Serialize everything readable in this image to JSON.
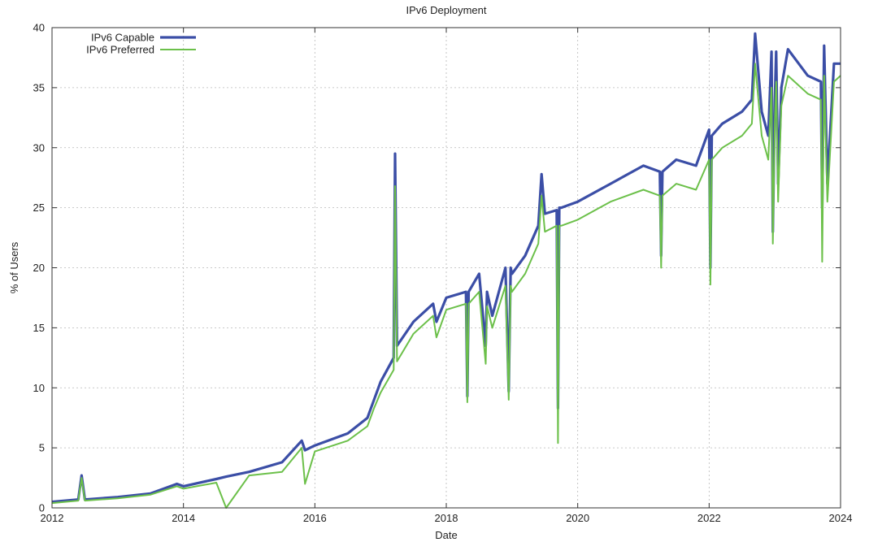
{
  "chart_data": {
    "type": "line",
    "title": "IPv6 Deployment",
    "xlabel": "Date",
    "ylabel": "% of Users",
    "xlim": [
      2012,
      2024
    ],
    "ylim": [
      0,
      40
    ],
    "x_ticks": [
      "2012",
      "2014",
      "2016",
      "2018",
      "2020",
      "2022",
      "2024"
    ],
    "y_ticks": [
      "0",
      "5",
      "10",
      "15",
      "20",
      "25",
      "30",
      "35",
      "40"
    ],
    "grid": true,
    "legend_position": "top-left",
    "series": [
      {
        "name": "IPv6 Capable",
        "color": "#3b4ea6",
        "x": [
          2012.0,
          2012.4,
          2012.45,
          2012.5,
          2013.0,
          2013.5,
          2013.9,
          2014.0,
          2014.5,
          2014.65,
          2015.0,
          2015.5,
          2015.8,
          2015.85,
          2016.0,
          2016.5,
          2016.8,
          2016.9,
          2017.0,
          2017.2,
          2017.22,
          2017.25,
          2017.5,
          2017.8,
          2017.85,
          2018.0,
          2018.3,
          2018.32,
          2018.34,
          2018.5,
          2018.6,
          2018.62,
          2018.7,
          2018.9,
          2018.95,
          2018.98,
          2019.0,
          2019.2,
          2019.4,
          2019.45,
          2019.5,
          2019.68,
          2019.7,
          2019.72,
          2019.75,
          2020.0,
          2020.5,
          2021.0,
          2021.25,
          2021.27,
          2021.29,
          2021.5,
          2021.8,
          2022.0,
          2022.02,
          2022.04,
          2022.2,
          2022.5,
          2022.65,
          2022.7,
          2022.8,
          2022.9,
          2022.95,
          2022.97,
          2023.0,
          2023.02,
          2023.05,
          2023.1,
          2023.2,
          2023.5,
          2023.7,
          2023.72,
          2023.75,
          2023.8,
          2023.9,
          2024.0
        ],
        "values": [
          0.5,
          0.7,
          2.7,
          0.7,
          0.9,
          1.2,
          2.0,
          1.8,
          2.4,
          2.6,
          3.0,
          3.8,
          5.6,
          4.8,
          5.2,
          6.2,
          7.5,
          9.0,
          10.5,
          12.5,
          29.5,
          13.5,
          15.5,
          17.0,
          15.5,
          17.5,
          18.0,
          9.3,
          18.0,
          19.5,
          13.5,
          18.0,
          16.0,
          20.0,
          9.7,
          20.0,
          19.5,
          21.0,
          23.5,
          27.8,
          24.5,
          24.8,
          8.3,
          25.0,
          25.0,
          25.5,
          27.0,
          28.5,
          28.0,
          21.0,
          28.0,
          29.0,
          28.5,
          31.5,
          20.0,
          31.0,
          32.0,
          33.0,
          34.0,
          39.5,
          33.0,
          31.0,
          38.0,
          23.0,
          34.0,
          38.0,
          27.0,
          35.0,
          38.2,
          36.0,
          35.5,
          25.0,
          38.5,
          27.0,
          37.0,
          37.0
        ]
      },
      {
        "name": "IPv6 Preferred",
        "color": "#6cc04a",
        "x": [
          2012.0,
          2012.4,
          2012.45,
          2012.5,
          2013.0,
          2013.5,
          2013.9,
          2014.0,
          2014.5,
          2014.65,
          2015.0,
          2015.5,
          2015.8,
          2015.85,
          2016.0,
          2016.5,
          2016.8,
          2016.9,
          2017.0,
          2017.2,
          2017.22,
          2017.25,
          2017.5,
          2017.8,
          2017.85,
          2018.0,
          2018.3,
          2018.32,
          2018.34,
          2018.5,
          2018.6,
          2018.62,
          2018.7,
          2018.9,
          2018.95,
          2018.98,
          2019.0,
          2019.2,
          2019.4,
          2019.45,
          2019.5,
          2019.68,
          2019.7,
          2019.72,
          2019.75,
          2020.0,
          2020.5,
          2021.0,
          2021.25,
          2021.27,
          2021.29,
          2021.5,
          2021.8,
          2022.0,
          2022.02,
          2022.04,
          2022.2,
          2022.5,
          2022.65,
          2022.7,
          2022.8,
          2022.9,
          2022.95,
          2022.97,
          2023.0,
          2023.02,
          2023.05,
          2023.1,
          2023.2,
          2023.5,
          2023.7,
          2023.72,
          2023.75,
          2023.8,
          2023.9,
          2024.0
        ],
        "values": [
          0.4,
          0.6,
          2.5,
          0.6,
          0.8,
          1.1,
          1.8,
          1.6,
          2.1,
          0.0,
          2.7,
          3.0,
          5.0,
          2.0,
          4.7,
          5.6,
          6.8,
          8.3,
          9.6,
          11.5,
          26.8,
          12.2,
          14.5,
          16.0,
          14.2,
          16.5,
          17.0,
          8.8,
          17.0,
          18.0,
          12.0,
          16.8,
          15.0,
          18.5,
          9.0,
          18.5,
          18.0,
          19.5,
          22.0,
          26.0,
          23.0,
          23.5,
          5.4,
          23.5,
          23.5,
          24.0,
          25.5,
          26.5,
          26.0,
          20.0,
          26.0,
          27.0,
          26.5,
          29.0,
          18.6,
          29.0,
          30.0,
          31.0,
          32.0,
          37.0,
          31.0,
          29.0,
          35.0,
          22.0,
          32.0,
          35.5,
          25.5,
          33.5,
          36.0,
          34.5,
          34.0,
          20.5,
          36.0,
          25.5,
          35.5,
          36.0
        ]
      }
    ]
  }
}
